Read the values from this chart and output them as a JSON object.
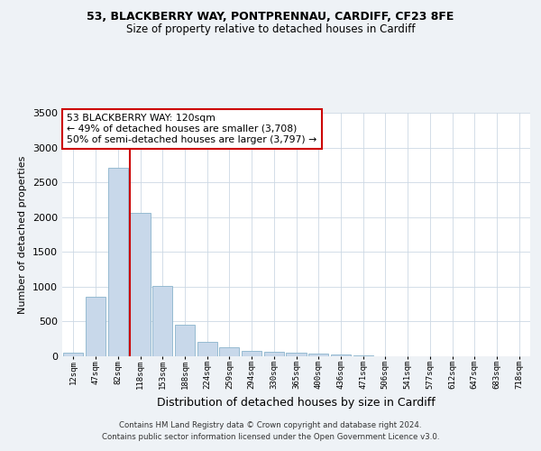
{
  "title1": "53, BLACKBERRY WAY, PONTPRENNAU, CARDIFF, CF23 8FE",
  "title2": "Size of property relative to detached houses in Cardiff",
  "xlabel": "Distribution of detached houses by size in Cardiff",
  "ylabel": "Number of detached properties",
  "bar_labels": [
    "12sqm",
    "47sqm",
    "82sqm",
    "118sqm",
    "153sqm",
    "188sqm",
    "224sqm",
    "259sqm",
    "294sqm",
    "330sqm",
    "365sqm",
    "400sqm",
    "436sqm",
    "471sqm",
    "506sqm",
    "541sqm",
    "577sqm",
    "612sqm",
    "647sqm",
    "683sqm",
    "718sqm"
  ],
  "bar_values": [
    50,
    855,
    2710,
    2060,
    1005,
    455,
    210,
    135,
    75,
    62,
    55,
    42,
    20,
    10,
    5,
    3,
    2,
    1,
    1,
    0,
    0
  ],
  "bar_color": "#c8d8ea",
  "bar_edgecolor": "#8ab4cc",
  "vline_color": "#cc0000",
  "annotation_title": "53 BLACKBERRY WAY: 120sqm",
  "annotation_line1": "← 49% of detached houses are smaller (3,708)",
  "annotation_line2": "50% of semi-detached houses are larger (3,797) →",
  "annotation_box_edgecolor": "#cc0000",
  "ylim": [
    0,
    3500
  ],
  "yticks": [
    0,
    500,
    1000,
    1500,
    2000,
    2500,
    3000,
    3500
  ],
  "footer1": "Contains HM Land Registry data © Crown copyright and database right 2024.",
  "footer2": "Contains public sector information licensed under the Open Government Licence v3.0.",
  "bg_color": "#eef2f6",
  "plot_bg_color": "#ffffff",
  "grid_color": "#ccd8e4"
}
